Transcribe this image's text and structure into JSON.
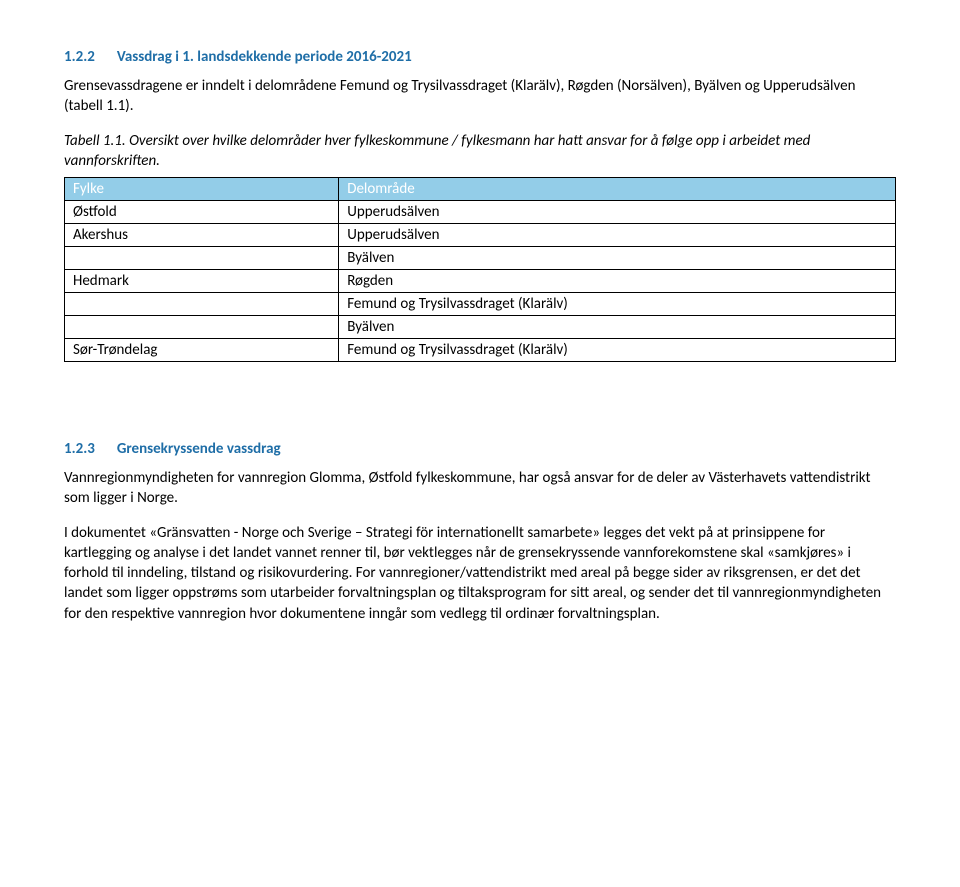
{
  "sections": {
    "s1": {
      "number": "1.2.2",
      "title": "Vassdrag i 1. landsdekkende periode 2016-2021",
      "color": "#1f6ea7",
      "fontsize": 15
    },
    "s2": {
      "number": "1.2.3",
      "title": "Grensekryssende vassdrag",
      "color": "#1f6ea7",
      "fontsize": 15
    }
  },
  "paragraphs": {
    "p1": "Grensevassdragene er inndelt i delområdene Femund og Trysilvassdraget (Klarälv), Røgden (Norsälven), Byälven og Upperudsälven (tabell 1.1).",
    "p2": "Tabell 1.1. Oversikt over hvilke delområder hver fylkeskommune / fylkesmann har hatt ansvar for å følge opp i arbeidet med vannforskriften.",
    "p3": "Vannregionmyndigheten for vannregion Glomma, Østfold fylkeskommune, har også ansvar for de deler av Västerhavets vattendistrikt som ligger i Norge.",
    "p4": "I dokumentet «Gränsvatten - Norge och Sverige – Strategi för internationellt samarbete» legges det vekt på at prinsippene for kartlegging og analyse i det landet vannet renner til, bør vektlegges når de grensekryssende vannforekomstene skal «samkjøres» i forhold til inndeling, tilstand og risikovurdering. For vannregioner/vattendistrikt med areal på begge sider av riksgrensen, er det det landet som ligger oppstrøms som utarbeider forvaltningsplan og tiltaksprogram for sitt areal, og sender det til vannregionmyndigheten for den respektive vannregion hvor dokumentene inngår som vedlegg til ordinær forvaltningsplan."
  },
  "table": {
    "header_bg": "#93cde8",
    "header_text_color": "#ffffff",
    "body_text_color": "#000000",
    "body_fontsize": 15,
    "columns": [
      "Fylke",
      "Delområde"
    ],
    "col_widths": [
      "33%",
      "67%"
    ],
    "rows": [
      [
        "Østfold",
        "Upperudsälven"
      ],
      [
        "Akershus",
        "Upperudsälven"
      ],
      [
        "",
        "Byälven"
      ],
      [
        "Hedmark",
        "Røgden"
      ],
      [
        "",
        "Femund og Trysilvassdraget (Klarälv)"
      ],
      [
        "",
        "Byälven"
      ],
      [
        "Sør-Trøndelag",
        "Femund og Trysilvassdraget (Klarälv)"
      ]
    ]
  },
  "body_fontsize": 15,
  "body_color": "#000000"
}
